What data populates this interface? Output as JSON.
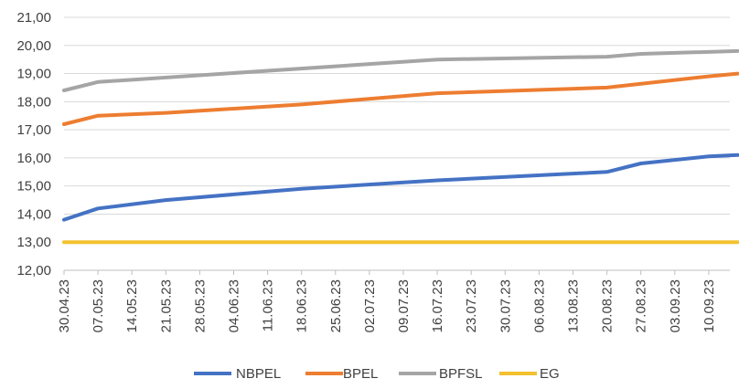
{
  "chart_data": {
    "type": "line",
    "title": "",
    "xlabel": "",
    "ylabel": "",
    "ylim": [
      12,
      21
    ],
    "yticks": [
      "12,00",
      "13,00",
      "14,00",
      "15,00",
      "16,00",
      "17,00",
      "18,00",
      "19,00",
      "20,00",
      "21,00"
    ],
    "categories": [
      "30.04.23",
      "07.05.23",
      "14.05.23",
      "21.05.23",
      "28.05.23",
      "04.06.23",
      "11.06.23",
      "18.06.23",
      "25.06.23",
      "02.07.23",
      "09.07.23",
      "16.07.23",
      "23.07.23",
      "30.07.23",
      "06.08.23",
      "13.08.23",
      "20.08.23",
      "27.08.23",
      "03.09.23",
      "10.09.23"
    ],
    "legend_position": "bottom",
    "grid": "horizontal",
    "series": [
      {
        "name": "NBPEL",
        "color": "#4472C4",
        "x": [
          "30.04.23",
          "07.05.23",
          "21.05.23",
          "18.06.23",
          "16.07.23",
          "20.08.23",
          "27.08.23",
          "10.09.23",
          "16.09.23"
        ],
        "values": [
          13.8,
          14.2,
          14.5,
          14.9,
          15.2,
          15.5,
          15.8,
          16.05,
          16.1
        ]
      },
      {
        "name": "BPEL",
        "color": "#ED7D31",
        "x": [
          "30.04.23",
          "07.05.23",
          "21.05.23",
          "18.06.23",
          "16.07.23",
          "20.08.23",
          "10.09.23",
          "16.09.23"
        ],
        "values": [
          17.2,
          17.5,
          17.6,
          17.9,
          18.3,
          18.5,
          18.9,
          19.0
        ]
      },
      {
        "name": "BPFSL",
        "color": "#A5A5A5",
        "x": [
          "30.04.23",
          "07.05.23",
          "16.07.23",
          "20.08.23",
          "27.08.23",
          "16.09.23"
        ],
        "values": [
          18.4,
          18.7,
          19.5,
          19.6,
          19.7,
          19.8
        ]
      },
      {
        "name": "EG",
        "color": "#F2C12E",
        "x": [
          "30.04.23",
          "16.09.23"
        ],
        "values": [
          13.0,
          13.0
        ]
      }
    ]
  }
}
